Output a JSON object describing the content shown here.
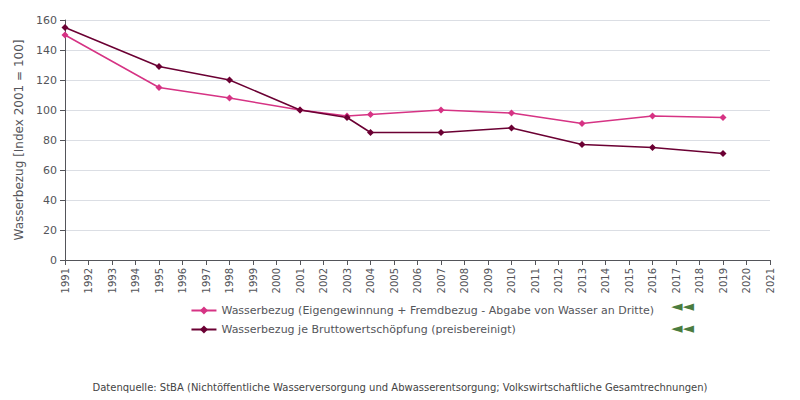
{
  "chart_data": {
    "type": "line",
    "y_label": "Wasserbezug [Index 2001 = 100]",
    "x": [
      1991,
      1995,
      1998,
      2001,
      2003,
      2004,
      2007,
      2010,
      2013,
      2016,
      2019
    ],
    "series": [
      {
        "name": "Wasserbezug (Eigengewinnung + Fremdbezug - Abgabe von Wasser an Dritte)",
        "color": "#d63384",
        "marker": "diamond",
        "values": [
          150,
          115,
          108,
          100,
          96,
          97,
          100,
          98,
          91,
          96,
          95
        ]
      },
      {
        "name": "Wasserbezug je Bruttowertschöpfung (preisbereinigt)",
        "color": "#6b0033",
        "marker": "diamond",
        "values": [
          155,
          129,
          120,
          100,
          95,
          85,
          85,
          88,
          77,
          75,
          71
        ]
      }
    ],
    "xlim": [
      1991,
      2021
    ],
    "xticks": [
      1991,
      1992,
      1993,
      1994,
      1995,
      1996,
      1997,
      1998,
      1999,
      2000,
      2001,
      2002,
      2003,
      2004,
      2005,
      2006,
      2007,
      2008,
      2009,
      2010,
      2011,
      2012,
      2013,
      2014,
      2015,
      2016,
      2017,
      2018,
      2019,
      2020,
      2021
    ],
    "ylim": [
      0,
      160
    ],
    "yticks": [
      0,
      20,
      40,
      60,
      80,
      100,
      120,
      140,
      160
    ],
    "grid": true,
    "legend": "bottom",
    "annotations": [
      {
        "text": "◄◄",
        "color": "#4a7c3f"
      },
      {
        "text": "◄◄",
        "color": "#4a7c3f"
      },
      {
        "text": "Datenquelle: StBA (Nichtöffentliche Wasserversorgung und Abwasserentsorgung; Volkswirtschaftliche Gesamtrechnungen)"
      }
    ]
  }
}
